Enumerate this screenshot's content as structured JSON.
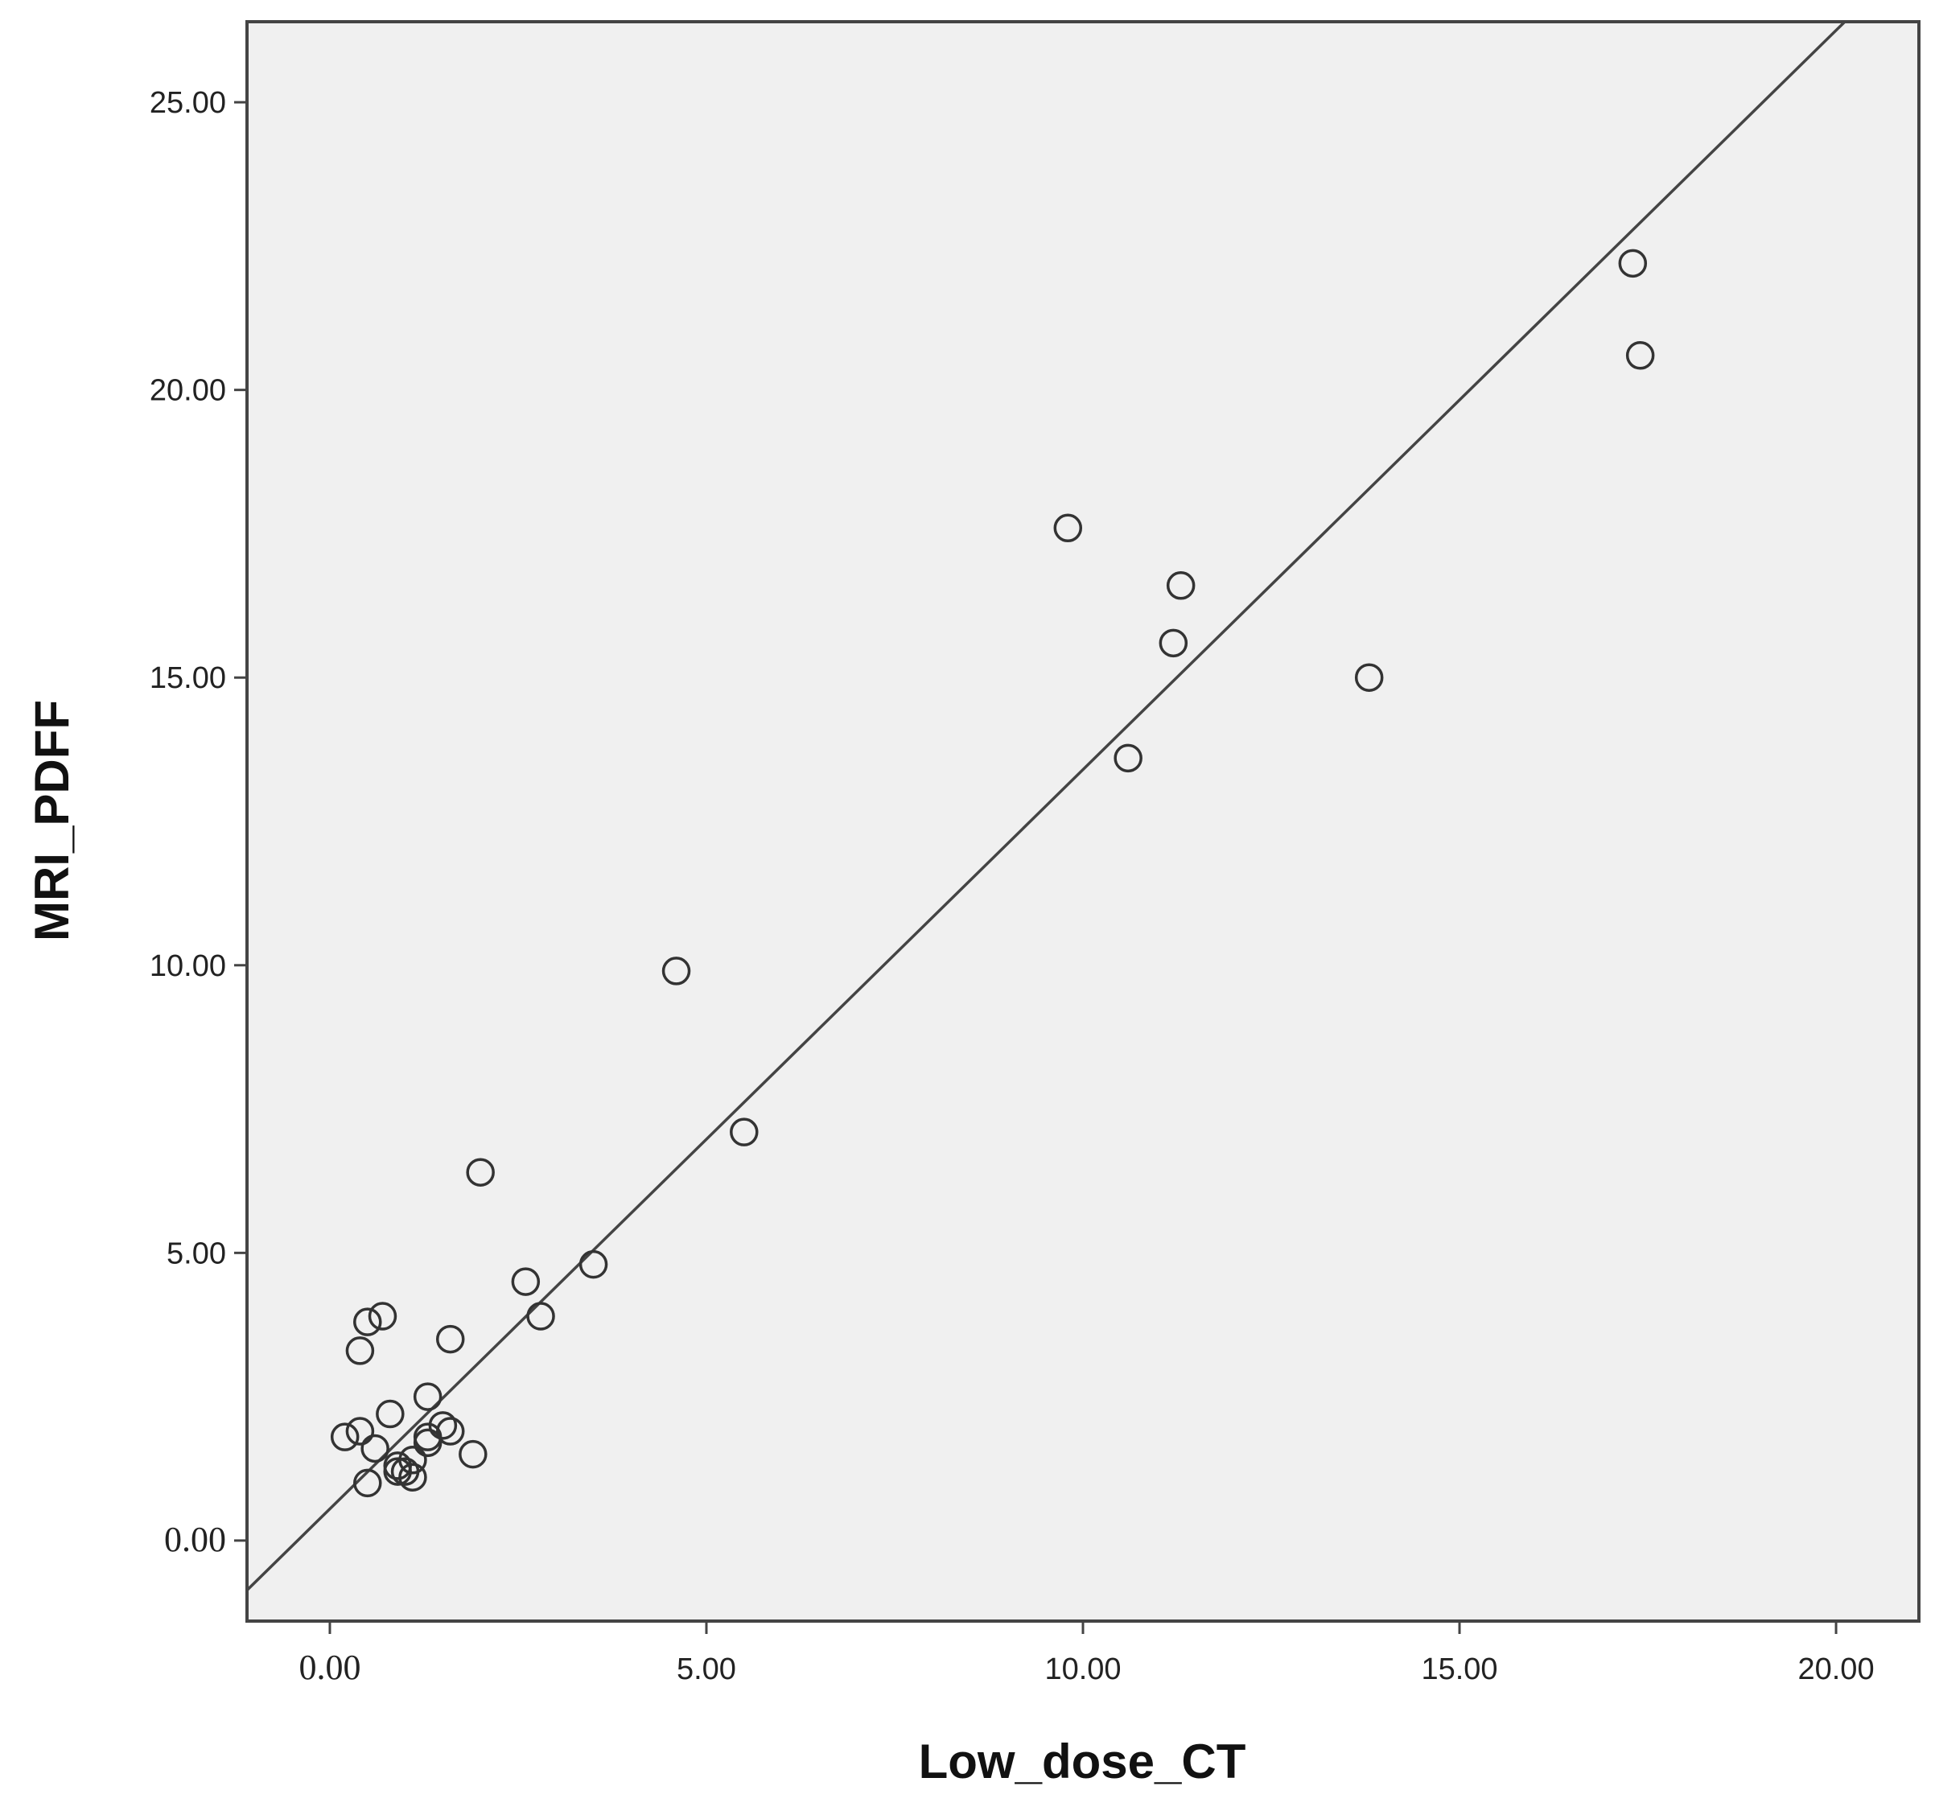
{
  "chart_data": {
    "type": "scatter",
    "title": "",
    "xlabel": "Low_dose_CT",
    "ylabel": "MRI_PDFF",
    "xlim": [
      -1.1,
      21.1
    ],
    "ylim": [
      -1.4,
      26.4
    ],
    "x_ticks": [
      0,
      5,
      10,
      15,
      20
    ],
    "x_tick_labels": [
      "0.00",
      "5.00",
      "10.00",
      "15.00",
      "20.00"
    ],
    "y_ticks": [
      0,
      5,
      10,
      15,
      20,
      25
    ],
    "y_tick_labels": [
      "0.00",
      "5.00",
      "10.00",
      "15.00",
      "20.00",
      "25.00"
    ],
    "grid": false,
    "background": "#f0f0f0",
    "marker": "open-circle",
    "fit_line": {
      "type": "linear",
      "slope": 1.285,
      "intercept": 0.55
    },
    "series": [
      {
        "points": [
          [
            17.3,
            22.2
          ],
          [
            17.4,
            20.6
          ],
          [
            9.8,
            17.6
          ],
          [
            11.3,
            16.6
          ],
          [
            11.2,
            15.6
          ],
          [
            13.8,
            15.0
          ],
          [
            10.6,
            13.6
          ],
          [
            4.6,
            9.9
          ],
          [
            5.5,
            7.1
          ],
          [
            2.0,
            6.4
          ],
          [
            3.5,
            4.8
          ],
          [
            2.6,
            4.5
          ],
          [
            2.8,
            3.9
          ],
          [
            1.6,
            3.5
          ],
          [
            0.7,
            3.9
          ],
          [
            0.5,
            3.8
          ],
          [
            0.4,
            3.3
          ],
          [
            1.3,
            2.5
          ],
          [
            0.8,
            2.2
          ],
          [
            1.5,
            2.0
          ],
          [
            1.6,
            1.9
          ],
          [
            1.3,
            1.8
          ],
          [
            1.3,
            1.7
          ],
          [
            0.2,
            1.8
          ],
          [
            0.4,
            1.9
          ],
          [
            0.6,
            1.6
          ],
          [
            1.9,
            1.5
          ],
          [
            1.1,
            1.4
          ],
          [
            0.9,
            1.3
          ],
          [
            1.0,
            1.2
          ],
          [
            1.1,
            1.1
          ],
          [
            0.5,
            1.0
          ],
          [
            0.9,
            1.2
          ]
        ]
      }
    ]
  }
}
